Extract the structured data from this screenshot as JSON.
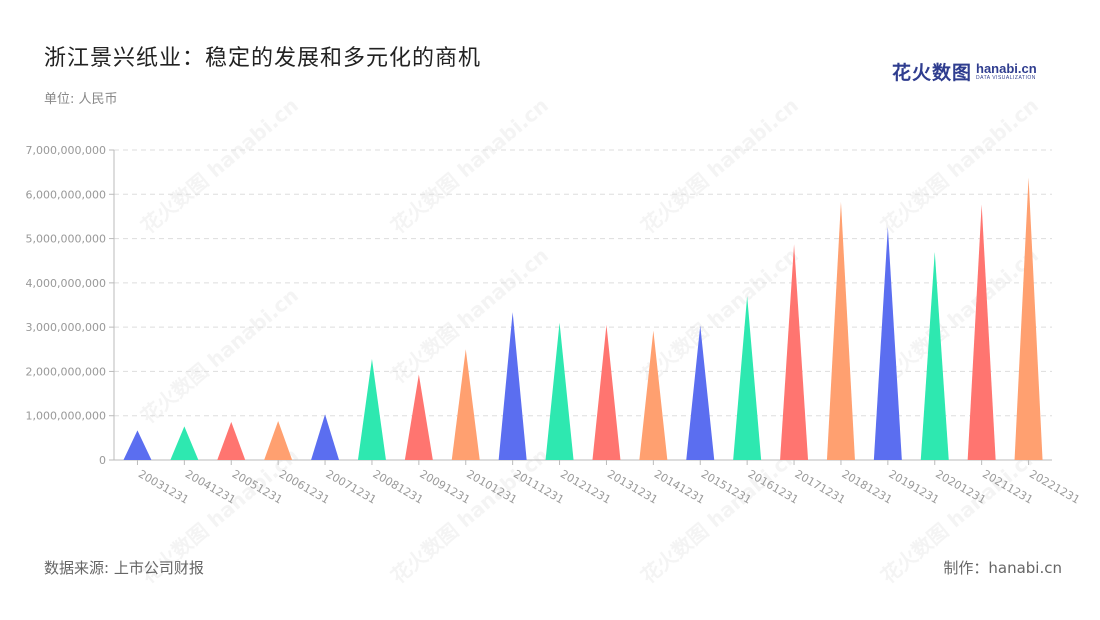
{
  "header": {
    "title": "浙江景兴纸业：稳定的发展和多元化的商机",
    "unit": "单位: 人民币"
  },
  "logo": {
    "cn": "花火数图",
    "en": "hanabi.cn",
    "tagline": "DATA VISUALIZATION"
  },
  "footer": {
    "source": "数据来源: 上市公司财报",
    "credit": "制作：hanabi.cn"
  },
  "watermark": "花火数图 hanabi.cn",
  "chart_data": {
    "type": "bar",
    "bar_shape": "triangle",
    "title": "浙江景兴纸业：稳定的发展和多元化的商机",
    "xlabel": "",
    "ylabel": "",
    "categories": [
      "20031231",
      "20041231",
      "20051231",
      "20061231",
      "20071231",
      "20081231",
      "20091231",
      "20101231",
      "20111231",
      "20121231",
      "20131231",
      "20141231",
      "20151231",
      "20161231",
      "20171231",
      "20181231",
      "20191231",
      "20201231",
      "20211231",
      "20221231"
    ],
    "values": [
      670000000,
      760000000,
      860000000,
      880000000,
      1030000000,
      2280000000,
      1930000000,
      2500000000,
      3340000000,
      3100000000,
      3050000000,
      2920000000,
      3040000000,
      3700000000,
      4870000000,
      5830000000,
      5260000000,
      4700000000,
      5770000000,
      6380000000
    ],
    "colors": [
      "#5b6ef0",
      "#2ee8b0",
      "#ff7570",
      "#ffa070"
    ],
    "ylim": [
      0,
      7000000000
    ],
    "yticks": [
      0,
      1000000000,
      2000000000,
      3000000000,
      4000000000,
      5000000000,
      6000000000,
      7000000000
    ],
    "ytick_labels": [
      "0",
      "1,000,000,000",
      "2,000,000,000",
      "3,000,000,000",
      "4,000,000,000",
      "5,000,000,000",
      "6,000,000,000",
      "7,000,000,000"
    ],
    "grid": true,
    "legend": "none"
  }
}
